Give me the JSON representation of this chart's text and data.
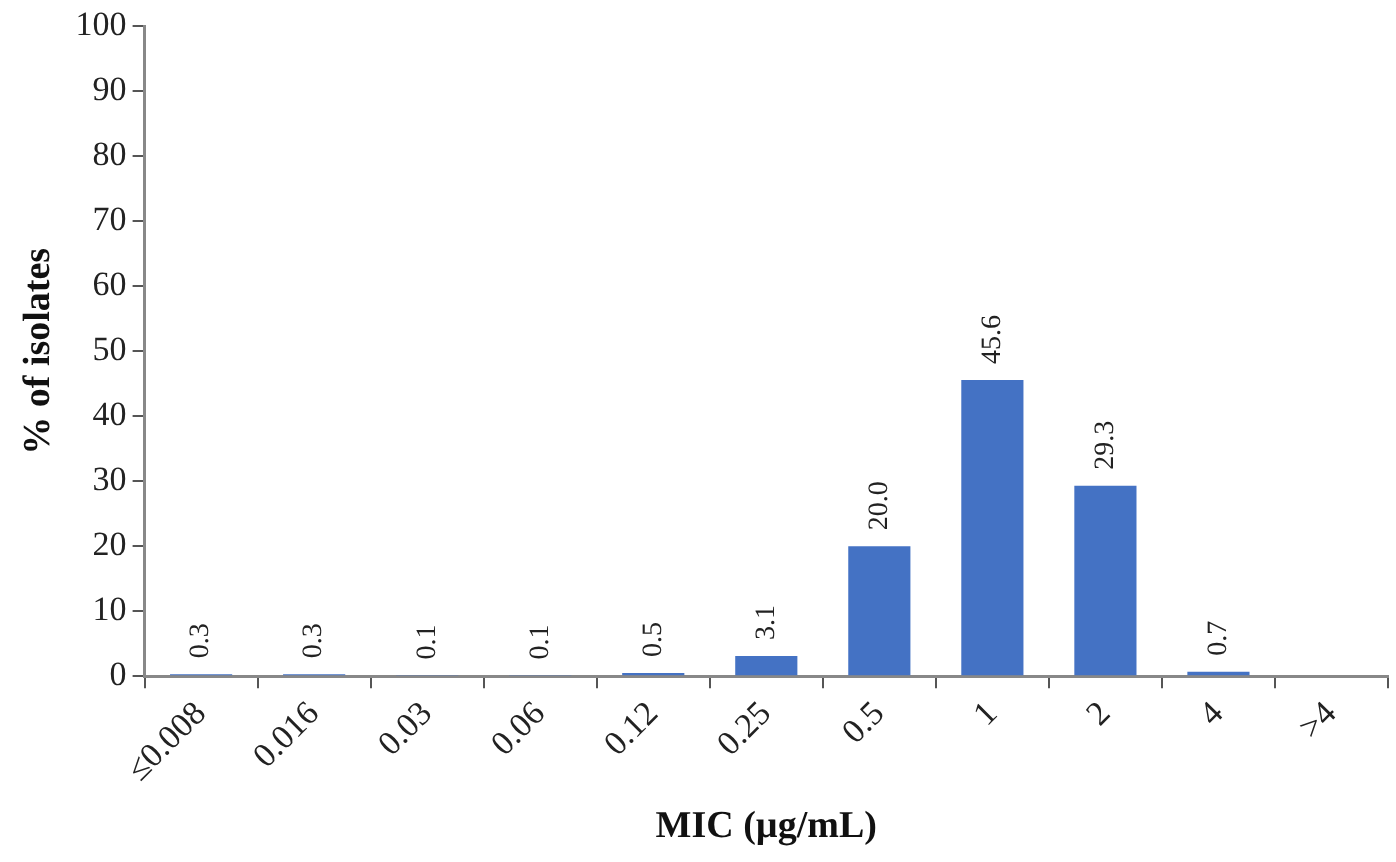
{
  "chart_data": {
    "type": "bar",
    "xlabel": "MIC (µg/mL)",
    "ylabel": "% of isolates",
    "categories": [
      "≤0.008",
      "0.016",
      "0.03",
      "0.06",
      "0.12",
      "0.25",
      "0.5",
      "1",
      "2",
      "4",
      ">4"
    ],
    "values": [
      0.3,
      0.3,
      0.1,
      0.1,
      0.5,
      3.1,
      20.0,
      45.6,
      29.3,
      0.7,
      null
    ],
    "value_labels": [
      "0.3",
      "0.3",
      "0.1",
      "0.1",
      "0.5",
      "3.1",
      "20.0",
      "45.6",
      "29.3",
      "0.7",
      null
    ],
    "color": "#4472c4",
    "ylim": [
      0,
      100
    ],
    "yticks": [
      0,
      10,
      20,
      30,
      40,
      50,
      60,
      70,
      80,
      90,
      100
    ],
    "grid": false,
    "legend": false
  }
}
